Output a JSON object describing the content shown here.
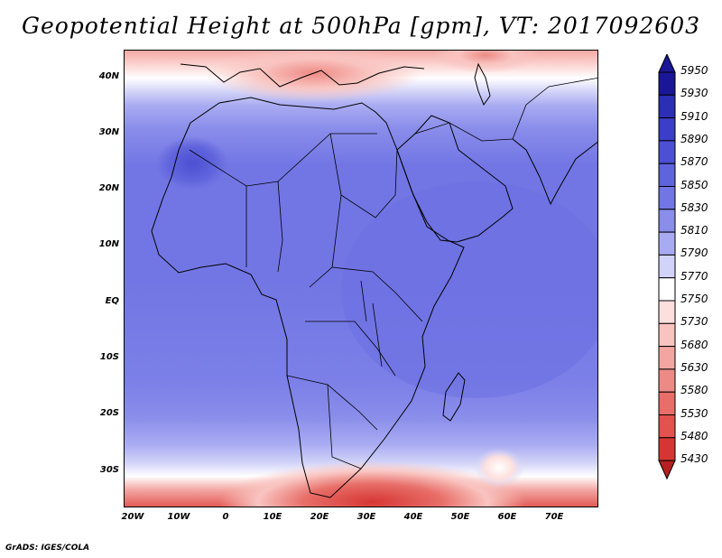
{
  "title": "Geopotential Height at 500hPa [gpm], VT: 2017092603",
  "credit": "GrADS: IGES/COLA",
  "map": {
    "variable": "Geopotential Height at 500hPa",
    "units": "gpm",
    "valid_time": "2017092603",
    "lon_range": [
      -23,
      78
    ],
    "lat_range": [
      -37,
      45
    ],
    "lat_ticks": [
      "40N",
      "30N",
      "20N",
      "10N",
      "EQ",
      "10S",
      "20S",
      "30S"
    ],
    "lon_ticks": [
      "20W",
      "10W",
      "0",
      "10E",
      "20E",
      "30E",
      "40E",
      "50E",
      "60E",
      "70E"
    ]
  },
  "colorbar": {
    "levels": [
      "5950",
      "5930",
      "5910",
      "5890",
      "5870",
      "5850",
      "5830",
      "5810",
      "5790",
      "5770",
      "5750",
      "5730",
      "5680",
      "5630",
      "5580",
      "5530",
      "5480",
      "5430"
    ],
    "colors": [
      "#1b1696",
      "#2c2eb4",
      "#3b3ec6",
      "#4c50d2",
      "#5f63dc",
      "#7276e4",
      "#8a8dea",
      "#a9abf2",
      "#d2d3f8",
      "#ffffff",
      "#fde0de",
      "#f9c4c0",
      "#f3a6a1",
      "#ee8a85",
      "#e86e69",
      "#e2524e",
      "#d63633",
      "#b51f1f"
    ]
  }
}
